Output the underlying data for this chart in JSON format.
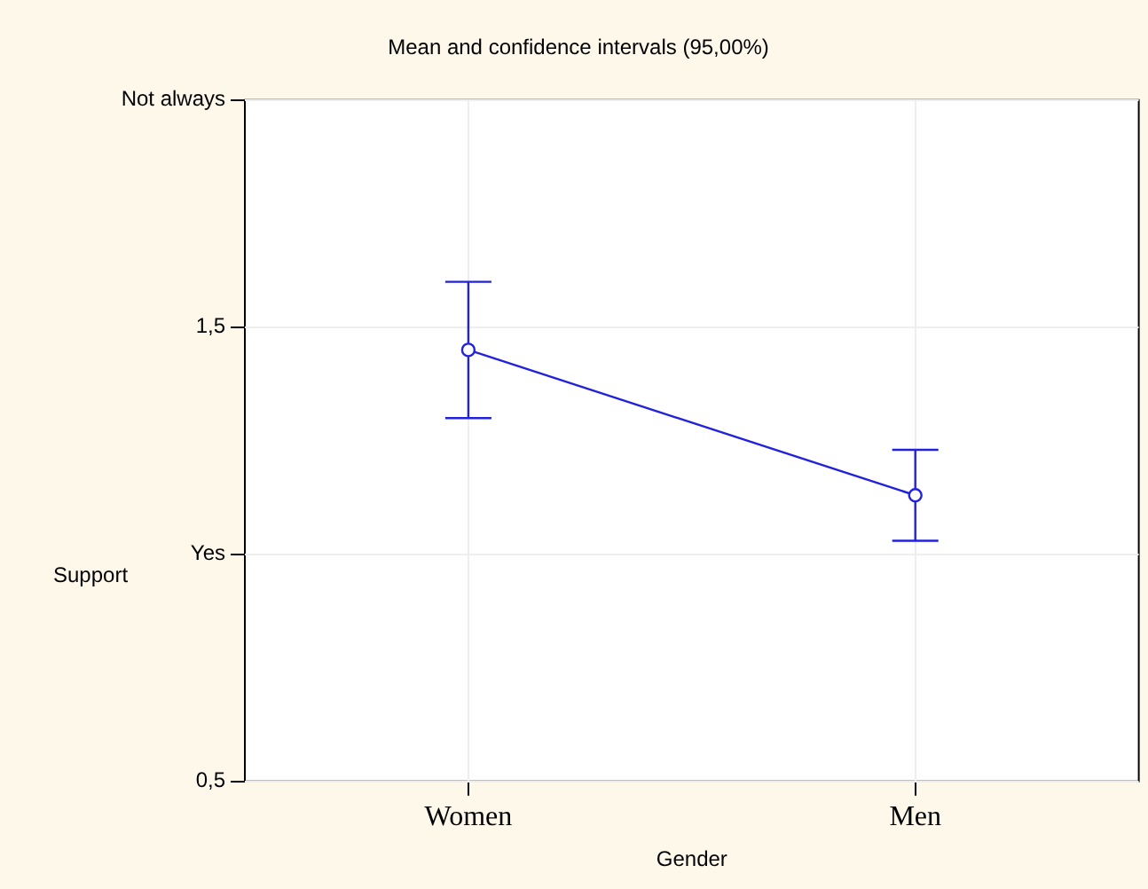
{
  "chart_data": {
    "type": "line",
    "title": "Mean and confidence intervals (95,00%)",
    "xlabel": "Gender",
    "ylabel": "Support",
    "categories": [
      "Women",
      "Men"
    ],
    "series": [
      {
        "color": "#2222dd",
        "values": [
          1.45,
          1.13
        ],
        "errors": [
          0.15,
          0.1
        ]
      }
    ],
    "ylim": [
      0.5,
      2
    ],
    "yticks": [
      {
        "value": 0.5,
        "label": "0,5"
      },
      {
        "value": 1,
        "label": "Yes"
      },
      {
        "value": 1.5,
        "label": "1,5"
      },
      {
        "value": 2,
        "label": "Not always"
      }
    ],
    "grid": true,
    "legend": false,
    "marker": "circle",
    "line_style": "solid"
  }
}
